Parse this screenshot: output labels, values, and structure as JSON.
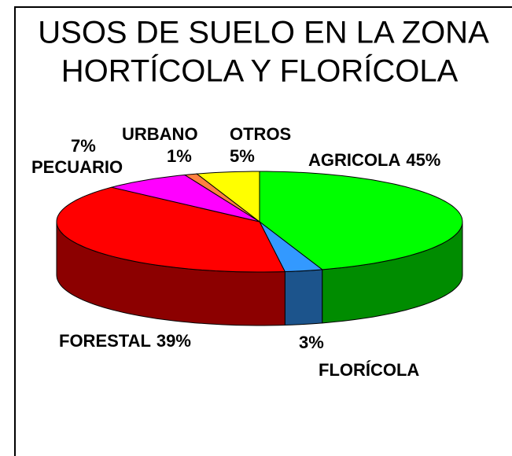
{
  "chart_data": {
    "type": "pie3d",
    "title": [
      "USOS DE SUELO EN LA ZONA",
      "HORTÍCOLA Y FLORÍCOLA"
    ],
    "categories": [
      "AGRICOLA",
      "FLORÍCOLA",
      "FORESTAL",
      "PECUARIO",
      "URBANO",
      "OTROS"
    ],
    "values": [
      45,
      3,
      39,
      7,
      1,
      5
    ],
    "value_labels": [
      "45%",
      "3%",
      "39%",
      "7%",
      "1%",
      "5%"
    ],
    "colors": [
      "#00ff00",
      "#3399ff",
      "#ff0000",
      "#ff00ff",
      "#ff8040",
      "#ffff00"
    ]
  }
}
